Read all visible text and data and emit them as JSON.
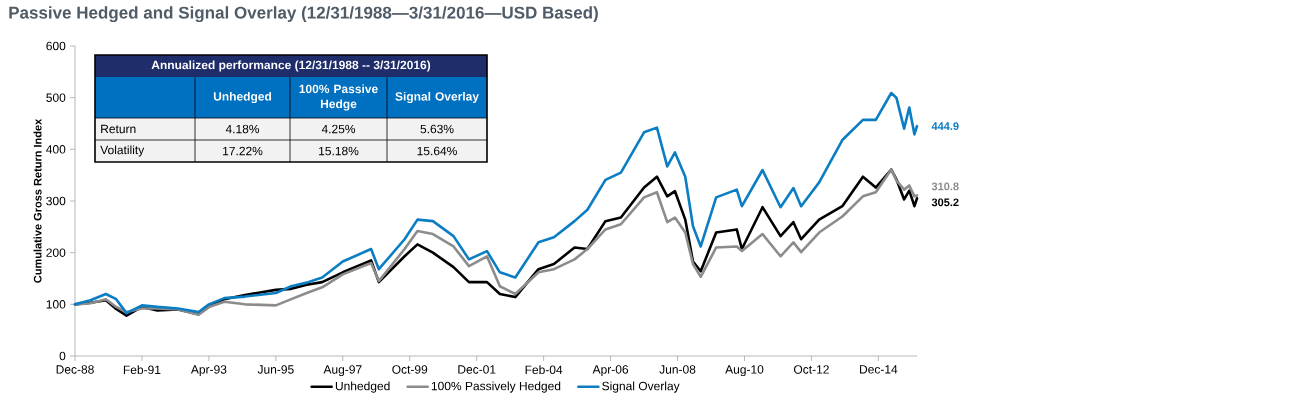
{
  "chart_data": {
    "type": "line",
    "title": "Passive Hedged and Signal Overlay (12/31/1988—3/31/2016—USD Based)",
    "ylabel": "Cumulative Gross Return Index",
    "x": [
      "1988-12",
      "1989-06",
      "1989-12",
      "1990-04",
      "1990-08",
      "1991-02",
      "1991-08",
      "1992-04",
      "1992-12",
      "1993-04",
      "1993-10",
      "1994-06",
      "1995-06",
      "1995-12",
      "1996-06",
      "1996-12",
      "1997-08",
      "1998-07",
      "1998-10",
      "1999-08",
      "2000-01",
      "2000-07",
      "2001-03",
      "2001-09",
      "2002-04",
      "2002-09",
      "2003-03",
      "2003-12",
      "2004-06",
      "2005-02",
      "2005-07",
      "2006-02",
      "2006-08",
      "2007-05",
      "2007-10",
      "2008-02",
      "2008-05",
      "2008-09",
      "2008-12",
      "2009-03",
      "2009-09",
      "2010-05",
      "2010-07",
      "2011-03",
      "2011-10",
      "2012-03",
      "2012-06",
      "2013-01",
      "2013-10",
      "2014-06",
      "2014-11",
      "2015-05",
      "2015-07",
      "2015-10",
      "2015-12",
      "2016-02",
      "2016-03"
    ],
    "series": [
      {
        "name": "Unhedged",
        "color": "#000000",
        "values": [
          100,
          103,
          108,
          91,
          78,
          95,
          88,
          90,
          81,
          95,
          110,
          118,
          128,
          130,
          138,
          143,
          162,
          185,
          143,
          193,
          216,
          200,
          172,
          143,
          143,
          120,
          114,
          168,
          178,
          210,
          207,
          261,
          268,
          326,
          347,
          309,
          319,
          264,
          183,
          164,
          239,
          245,
          207,
          288,
          232,
          259,
          226,
          264,
          290,
          347,
          326,
          361,
          342,
          303,
          320,
          290,
          305.2
        ],
        "value_labels": [
          null,
          null,
          null,
          null,
          null,
          null,
          null,
          null,
          null,
          null,
          null,
          null,
          null,
          null,
          null,
          null,
          null,
          null,
          null,
          null,
          null,
          null,
          null,
          null,
          null,
          null,
          null,
          null,
          null,
          null,
          null,
          null,
          null,
          null,
          null,
          null,
          null,
          null,
          null,
          null,
          null,
          null,
          null,
          null,
          null,
          null,
          null,
          null,
          null,
          null,
          null,
          null,
          null,
          null,
          null,
          null,
          "305.2"
        ]
      },
      {
        "name": "100% Passively Hedged",
        "color": "#8c8c8c",
        "values": [
          100,
          102,
          110,
          95,
          85,
          92,
          92,
          90,
          80,
          95,
          105,
          100,
          98,
          110,
          122,
          133,
          158,
          180,
          145,
          207,
          242,
          236,
          212,
          174,
          193,
          135,
          120,
          162,
          168,
          187,
          207,
          245,
          255,
          307,
          317,
          259,
          268,
          239,
          178,
          153,
          210,
          212,
          203,
          236,
          193,
          220,
          201,
          239,
          270,
          309,
          317,
          361,
          340,
          322,
          330,
          309,
          310.8
        ],
        "value_labels": [
          null,
          null,
          null,
          null,
          null,
          null,
          null,
          null,
          null,
          null,
          null,
          null,
          null,
          null,
          null,
          null,
          null,
          null,
          null,
          null,
          null,
          null,
          null,
          null,
          null,
          null,
          null,
          null,
          null,
          null,
          null,
          null,
          null,
          null,
          null,
          null,
          null,
          null,
          null,
          null,
          null,
          null,
          null,
          null,
          null,
          null,
          null,
          null,
          null,
          null,
          null,
          null,
          null,
          null,
          null,
          null,
          "310.8"
        ]
      },
      {
        "name": "Signal Overlay",
        "color": "#0b7dc3",
        "values": [
          100,
          108,
          120,
          110,
          83,
          98,
          95,
          92,
          85,
          100,
          112,
          115,
          122,
          135,
          142,
          152,
          183,
          207,
          168,
          226,
          264,
          261,
          232,
          187,
          203,
          162,
          152,
          220,
          230,
          261,
          283,
          341,
          355,
          433,
          442,
          367,
          394,
          347,
          251,
          212,
          307,
          322,
          290,
          360,
          288,
          325,
          290,
          336,
          418,
          457,
          457,
          509,
          500,
          440,
          481,
          429,
          444.9
        ],
        "value_labels": [
          null,
          null,
          null,
          null,
          null,
          null,
          null,
          null,
          null,
          null,
          null,
          null,
          null,
          null,
          null,
          null,
          null,
          null,
          null,
          null,
          null,
          null,
          null,
          null,
          null,
          null,
          null,
          null,
          null,
          null,
          null,
          null,
          null,
          null,
          null,
          null,
          null,
          null,
          null,
          null,
          null,
          null,
          null,
          null,
          null,
          null,
          null,
          null,
          null,
          null,
          null,
          null,
          null,
          null,
          null,
          null,
          "444.9"
        ]
      }
    ],
    "xlim": [
      "1988-12",
      "2016-03"
    ],
    "xticks": [
      {
        "value": "1988-12",
        "label": "Dec-88"
      },
      {
        "value": "1991-02",
        "label": "Feb-91"
      },
      {
        "value": "1993-04",
        "label": "Apr-93"
      },
      {
        "value": "1995-06",
        "label": "Jun-95"
      },
      {
        "value": "1997-08",
        "label": "Aug-97"
      },
      {
        "value": "1999-10",
        "label": "Oct-99"
      },
      {
        "value": "2001-12",
        "label": "Dec-01"
      },
      {
        "value": "2004-02",
        "label": "Feb-04"
      },
      {
        "value": "2006-04",
        "label": "Apr-06"
      },
      {
        "value": "2008-06",
        "label": "Jun-08"
      },
      {
        "value": "2010-08",
        "label": "Aug-10"
      },
      {
        "value": "2012-10",
        "label": "Oct-12"
      },
      {
        "value": "2014-12",
        "label": "Dec-14"
      }
    ],
    "ylim": [
      0,
      600
    ],
    "yticks": [
      0,
      100,
      200,
      300,
      400,
      500,
      600
    ],
    "legend": "bottom",
    "annotations": [
      "Annualized performance (12/31/1988 -- 3/31/2016)",
      "Unhedged",
      "100% Passive Hedge",
      "Signal Overlay",
      "Return",
      "4.18%",
      "4.25%",
      "5.63%",
      "Volatility",
      "17.22%",
      "15.18%",
      "15.64%"
    ]
  }
}
